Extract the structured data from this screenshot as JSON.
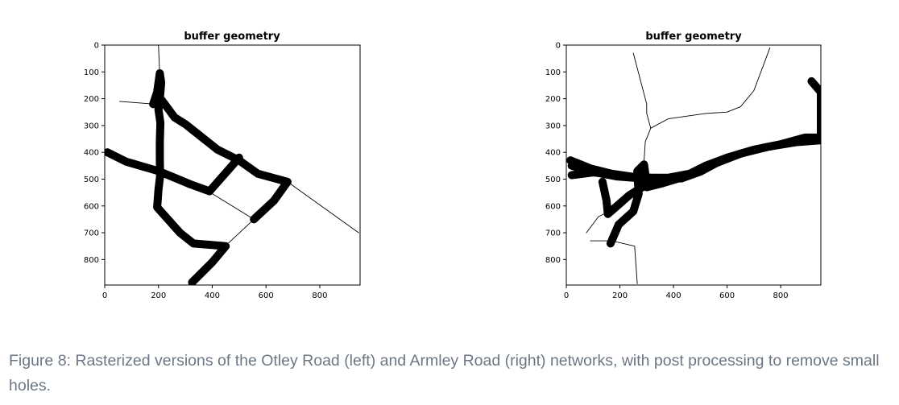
{
  "figure": {
    "caption": "Figure 8: Rasterized versions of the Otley Road (left) and Armley Road (right) networks, with post processing to remove small holes.",
    "panels": [
      {
        "id": "otley",
        "title": "buffer geometry",
        "x_ticks": [
          0,
          200,
          400,
          600,
          800
        ],
        "y_ticks": [
          0,
          100,
          200,
          300,
          400,
          500,
          600,
          700,
          800
        ],
        "xlim": [
          0,
          950
        ],
        "ylim": [
          0,
          895
        ],
        "thick_paths": [
          [
            [
              205,
              200
            ],
            [
              210,
              140
            ],
            [
              205,
              105
            ],
            [
              195,
              175
            ],
            [
              180,
              220
            ],
            [
              205,
              205
            ],
            [
              200,
              240
            ],
            [
              207,
              290
            ],
            [
              205,
              360
            ],
            [
              205,
              420
            ],
            [
              206,
              490
            ],
            [
              200,
              540
            ],
            [
              195,
              605
            ],
            [
              280,
              700
            ],
            [
              330,
              740
            ],
            [
              450,
              750
            ],
            [
              400,
              810
            ],
            [
              325,
              885
            ]
          ],
          [
            [
              212,
              205
            ],
            [
              260,
              270
            ],
            [
              300,
              295
            ],
            [
              420,
              390
            ],
            [
              500,
              430
            ],
            [
              570,
              480
            ],
            [
              680,
              510
            ],
            [
              630,
              580
            ],
            [
              555,
              650
            ]
          ],
          [
            [
              10,
              400
            ],
            [
              80,
              435
            ],
            [
              200,
              470
            ],
            [
              260,
              495
            ],
            [
              320,
              520
            ],
            [
              390,
              545
            ],
            [
              500,
              420
            ]
          ]
        ],
        "thin_paths": [
          [
            [
              200,
              0
            ],
            [
              205,
              120
            ]
          ],
          [
            [
              55,
              210
            ],
            [
              185,
              220
            ]
          ],
          [
            [
              385,
              545
            ],
            [
              555,
              650
            ]
          ],
          [
            [
              680,
              510
            ],
            [
              945,
              700
            ]
          ],
          [
            [
              448,
              750
            ],
            [
              560,
              645
            ]
          ]
        ]
      },
      {
        "id": "armley",
        "title": "buffer geometry",
        "x_ticks": [
          0,
          200,
          400,
          600,
          800
        ],
        "y_ticks": [
          0,
          100,
          200,
          300,
          400,
          500,
          600,
          700,
          800
        ],
        "xlim": [
          0,
          950
        ],
        "ylim": [
          0,
          895
        ],
        "thick_paths": [
          [
            [
              915,
              135
            ],
            [
              950,
              175
            ],
            [
              950,
              345
            ]
          ],
          [
            [
              15,
              430
            ],
            [
              90,
              460
            ],
            [
              170,
              480
            ],
            [
              240,
              490
            ],
            [
              320,
              495
            ],
            [
              380,
              495
            ],
            [
              460,
              480
            ],
            [
              520,
              450
            ],
            [
              600,
              420
            ],
            [
              700,
              390
            ],
            [
              800,
              370
            ],
            [
              890,
              345
            ],
            [
              950,
              345
            ]
          ],
          [
            [
              20,
              450
            ],
            [
              110,
              475
            ],
            [
              190,
              490
            ],
            [
              290,
              498
            ],
            [
              350,
              500
            ],
            [
              430,
              497
            ],
            [
              500,
              472
            ],
            [
              560,
              440
            ],
            [
              650,
              405
            ],
            [
              750,
              380
            ],
            [
              860,
              362
            ],
            [
              950,
              355
            ]
          ],
          [
            [
              20,
              485
            ],
            [
              100,
              475
            ],
            [
              180,
              482
            ],
            [
              260,
              495
            ]
          ],
          [
            [
              135,
              510
            ],
            [
              150,
              580
            ],
            [
              155,
              630
            ],
            [
              235,
              560
            ],
            [
              300,
              520
            ],
            [
              290,
              445
            ],
            [
              265,
              470
            ],
            [
              270,
              555
            ],
            [
              250,
              620
            ],
            [
              195,
              670
            ],
            [
              165,
              740
            ]
          ],
          [
            [
              300,
              530
            ],
            [
              360,
              515
            ],
            [
              450,
              488
            ]
          ]
        ],
        "thin_paths": [
          [
            [
              250,
              30
            ],
            [
              300,
              220
            ],
            [
              300,
              255
            ],
            [
              315,
              310
            ]
          ],
          [
            [
              315,
              310
            ],
            [
              380,
              275
            ],
            [
              520,
              255
            ],
            [
              600,
              250
            ],
            [
              650,
              230
            ],
            [
              700,
              170
            ],
            [
              760,
              10
            ]
          ],
          [
            [
              315,
              310
            ],
            [
              295,
              360
            ],
            [
              290,
              430
            ]
          ],
          [
            [
              75,
              700
            ],
            [
              120,
              640
            ],
            [
              170,
              615
            ]
          ],
          [
            [
              90,
              730
            ],
            [
              170,
              730
            ],
            [
              255,
              750
            ],
            [
              265,
              890
            ]
          ]
        ]
      }
    ]
  }
}
